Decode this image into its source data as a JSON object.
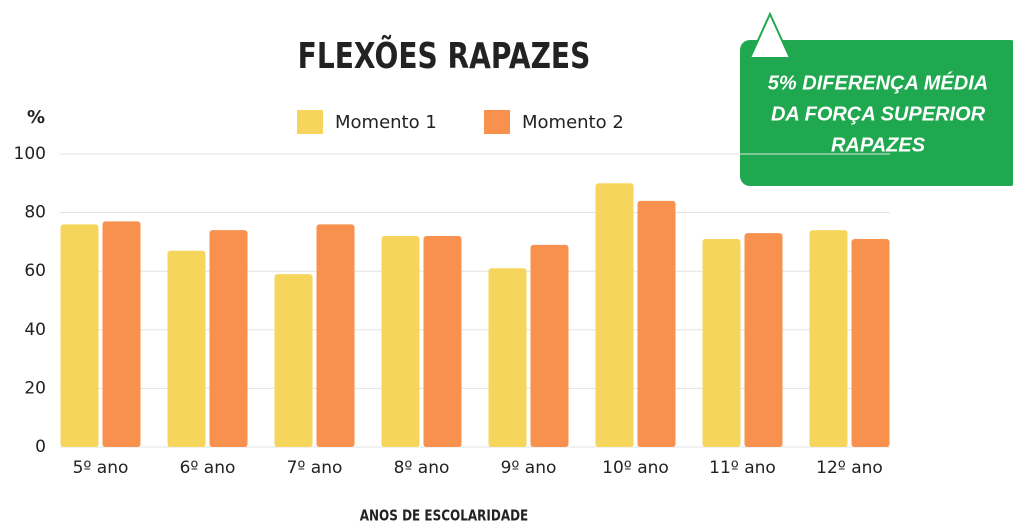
{
  "chart_data": {
    "type": "bar",
    "title": "FLEXÕES RAPAZES",
    "y_label": "%",
    "x_label": "ANOS DE ESCOLARIDADE",
    "annotation": [
      "5% DIFERENÇA MÉDIA",
      "DA FORÇA SUPERIOR",
      "RAPAZES"
    ],
    "categories": [
      "5º ano",
      "6º ano",
      "7º ano",
      "8º ano",
      "9º ano",
      "10º ano",
      "11º ano",
      "12º ano"
    ],
    "series": [
      {
        "name": "Momento 1",
        "color": "#f6d55c",
        "values": [
          76,
          67,
          59,
          72,
          61,
          90,
          71,
          74
        ]
      },
      {
        "name": "Momento 2",
        "color": "#f7914d",
        "values": [
          77,
          74,
          76,
          72,
          69,
          84,
          73,
          71
        ]
      }
    ],
    "ylim": [
      0,
      100
    ],
    "yticks": [
      0,
      20,
      40,
      60,
      80,
      100
    ],
    "grid": true
  }
}
